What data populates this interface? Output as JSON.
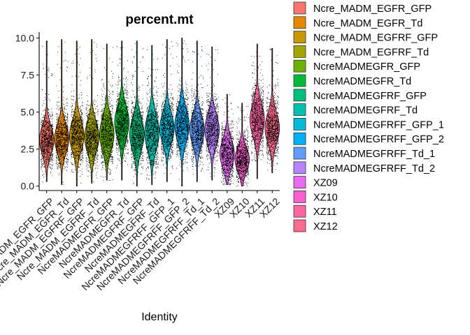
{
  "chart_data": {
    "type": "scatter",
    "subtype": "violin-jitter",
    "title": "percent.mt",
    "xlabel": "Identity",
    "ylabel": "",
    "ylim": [
      -0.3,
      10.4
    ],
    "yticks": [
      "0.0",
      "2.5",
      "5.0",
      "7.5",
      "10.0"
    ],
    "ytick_values": [
      0,
      2.5,
      5,
      7.5,
      10
    ],
    "grid": false,
    "legend_position": "right",
    "point_color": "#000000",
    "categories": [
      "Ncre_MADM_EGFR_GFP",
      "Ncre_MADM_EGFR_Td",
      "Ncre_MADM_EGFRF_GFP",
      "Ncre_MADM_EGFRF_Td",
      "NcreMADMEGFR_GFP",
      "NcreMADMEGFR_Td",
      "NcreMADMEGFRF_GFP",
      "NcreMADMEGFRF_Td",
      "NcreMADMEGFRFF_GFP_1",
      "NcreMADMEGFRFF_GFP_2",
      "NcreMADMEGFRFF_Td_1",
      "NcreMADMEGFRFF_Td_2",
      "XZ09",
      "XZ10",
      "XZ11",
      "XZ12"
    ],
    "colors": [
      "#F8766D",
      "#E58700",
      "#C99800",
      "#A3A500",
      "#6BB100",
      "#00BA38",
      "#00BF7D",
      "#00C0AF",
      "#00BCD8",
      "#00B0F6",
      "#619CFF",
      "#B983FF",
      "#E76BF3",
      "#FD61D1",
      "#FF67A4",
      "#FF6C90"
    ],
    "series": [
      {
        "name": "Ncre_MADM_EGFR_GFP",
        "median": 3.1,
        "q1": 2.5,
        "q3": 3.8,
        "min": 0.3,
        "max": 9.8
      },
      {
        "name": "Ncre_MADM_EGFR_Td",
        "median": 3.2,
        "q1": 2.6,
        "q3": 3.9,
        "min": 0.1,
        "max": 9.9
      },
      {
        "name": "Ncre_MADM_EGFRF_GFP",
        "median": 3.4,
        "q1": 2.7,
        "q3": 4.1,
        "min": 0.0,
        "max": 9.8
      },
      {
        "name": "Ncre_MADM_EGFRF_Td",
        "median": 3.3,
        "q1": 2.6,
        "q3": 4.0,
        "min": 0.2,
        "max": 9.9
      },
      {
        "name": "NcreMADMEGFR_GFP",
        "median": 3.5,
        "q1": 2.8,
        "q3": 4.3,
        "min": 0.4,
        "max": 9.6
      },
      {
        "name": "NcreMADMEGFR_Td",
        "median": 4.3,
        "q1": 3.6,
        "q3": 5.1,
        "min": 0.4,
        "max": 9.8
      },
      {
        "name": "NcreMADMEGFRF_GFP",
        "median": 3.5,
        "q1": 2.8,
        "q3": 4.3,
        "min": 0.0,
        "max": 9.8
      },
      {
        "name": "NcreMADMEGFRF_Td",
        "median": 3.6,
        "q1": 2.8,
        "q3": 4.4,
        "min": 0.1,
        "max": 9.5
      },
      {
        "name": "NcreMADMEGFRFF_GFP_1",
        "median": 3.9,
        "q1": 3.2,
        "q3": 4.6,
        "min": 0.3,
        "max": 9.9
      },
      {
        "name": "NcreMADMEGFRFF_GFP_2",
        "median": 4.1,
        "q1": 3.4,
        "q3": 4.9,
        "min": 0.0,
        "max": 10.0
      },
      {
        "name": "NcreMADMEGFRFF_Td_1",
        "median": 3.8,
        "q1": 3.1,
        "q3": 4.5,
        "min": 0.3,
        "max": 9.8
      },
      {
        "name": "NcreMADMEGFRFF_Td_2",
        "median": 3.8,
        "q1": 3.1,
        "q3": 4.5,
        "min": 0.4,
        "max": 9.4
      },
      {
        "name": "XZ09",
        "median": 2.2,
        "q1": 1.6,
        "q3": 2.9,
        "min": 0.1,
        "max": 6.2
      },
      {
        "name": "XZ10",
        "median": 1.8,
        "q1": 1.3,
        "q3": 2.4,
        "min": 0.0,
        "max": 5.6
      },
      {
        "name": "XZ11",
        "median": 4.5,
        "q1": 3.8,
        "q3": 5.3,
        "min": 0.5,
        "max": 9.6
      },
      {
        "name": "XZ12",
        "median": 3.9,
        "q1": 3.2,
        "q3": 4.6,
        "min": 0.9,
        "max": 9.3
      }
    ]
  }
}
